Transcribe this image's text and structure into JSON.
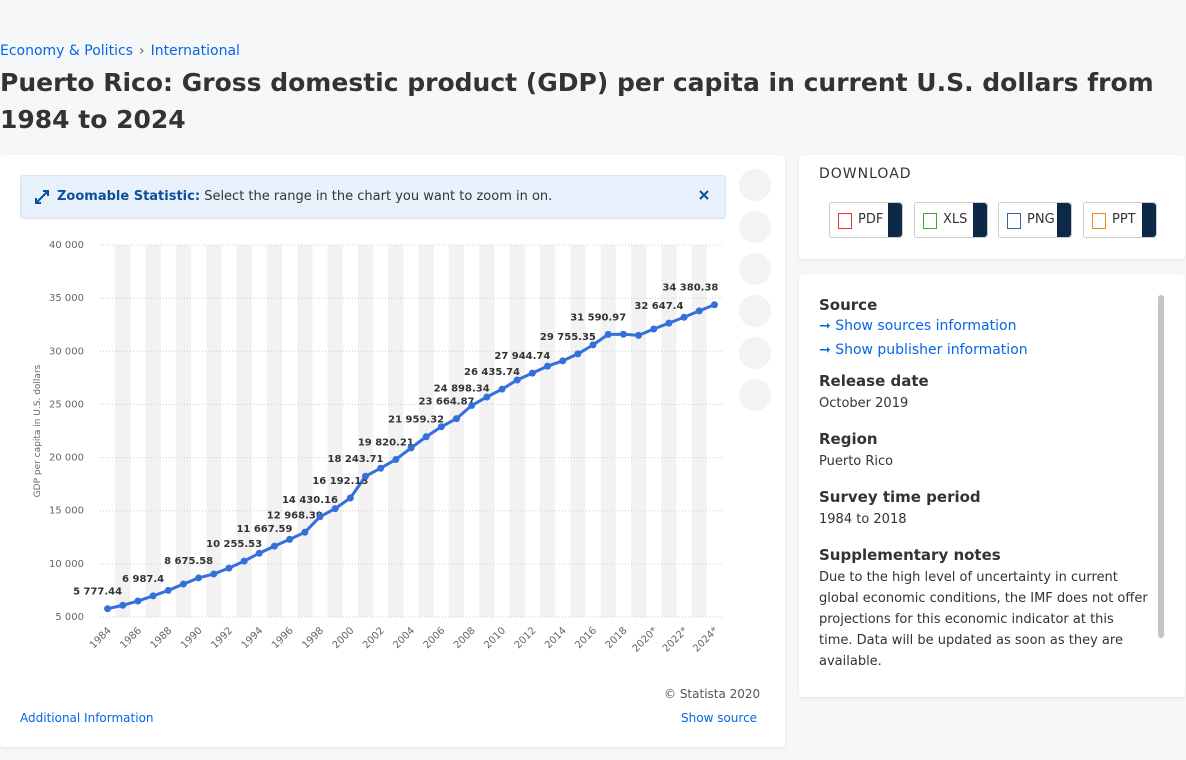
{
  "breadcrumb": [
    "Economy & Politics",
    "International"
  ],
  "title": "Puerto Rico: Gross domestic product (GDP) per capita in current U.S. dollars from 1984 to 2024",
  "zoom_notice": {
    "label": "Zoomable Statistic:",
    "text": "Select the range in the chart you want to zoom in on."
  },
  "chart_data": {
    "type": "line",
    "y_label": "GDP per capita in U.S. dollars",
    "categories": [
      "1984",
      null,
      "1986",
      null,
      "1988",
      null,
      "1990",
      null,
      "1992",
      null,
      "1994",
      null,
      "1996",
      null,
      "1998",
      null,
      "2000",
      null,
      "2002",
      null,
      "2004",
      null,
      "2006",
      null,
      "2008",
      null,
      "2010",
      null,
      "2012",
      null,
      "2014",
      null,
      "2016",
      null,
      "2018",
      null,
      "2020*",
      null,
      "2022*",
      null,
      "2024*"
    ],
    "values": [
      5777.44,
      6100,
      6500,
      6987.4,
      7500,
      8100,
      8675.58,
      9050,
      9600,
      10255.53,
      11000,
      11667.59,
      12300,
      12968.39,
      14430.16,
      15200,
      16192.13,
      18243.71,
      19000,
      19820.21,
      20900,
      21959.32,
      22900,
      23664.87,
      24898.34,
      25700,
      26435.74,
      27300,
      27944.74,
      28600,
      29100,
      29755.35,
      30600,
      31590.97,
      31600,
      31500,
      32100,
      32647.4,
      33200,
      33800,
      34380.38
    ],
    "value_labels": [
      "5 777.44",
      null,
      null,
      "6 987.4",
      null,
      null,
      "8 675.58",
      null,
      null,
      "10 255.53",
      null,
      "11 667.59",
      null,
      "12 968.39",
      "14 430.16",
      null,
      "16 192.13",
      "18 243.71",
      null,
      "19 820.21",
      null,
      "21 959.32",
      null,
      "23 664.87",
      "24 898.34",
      null,
      "26 435.74",
      null,
      "27 944.74",
      null,
      null,
      "29 755.35",
      null,
      "31 590.97",
      null,
      null,
      null,
      "32 647.4",
      null,
      null,
      "34 380.38"
    ],
    "color": "#3470d9",
    "ylim": [
      5000,
      40000
    ],
    "yticks": [
      {
        "value": 5000,
        "label": "5 000"
      },
      {
        "value": 10000,
        "label": "10 000"
      },
      {
        "value": 15000,
        "label": "15 000"
      },
      {
        "value": 20000,
        "label": "20 000"
      },
      {
        "value": 25000,
        "label": "25 000"
      },
      {
        "value": 30000,
        "label": "30 000"
      },
      {
        "value": 35000,
        "label": "35 000"
      },
      {
        "value": 40000,
        "label": "40 000"
      }
    ],
    "grid": true
  },
  "chart_footer": {
    "copyright": "© Statista 2020",
    "additional_info": "Additional Information",
    "show_source": "Show source"
  },
  "download": {
    "heading": "DOWNLOAD",
    "formats": [
      "PDF",
      "XLS",
      "PNG",
      "PPT"
    ]
  },
  "details": {
    "source": {
      "heading": "Source",
      "links": [
        "Show sources information",
        "Show publisher information"
      ]
    },
    "release_date": {
      "heading": "Release date",
      "text": "October 2019"
    },
    "region": {
      "heading": "Region",
      "text": "Puerto Rico"
    },
    "survey_period": {
      "heading": "Survey time period",
      "text": "1984 to 2018"
    },
    "notes": {
      "heading": "Supplementary notes",
      "text": "Due to the high level of uncertainty in current global economic conditions, the IMF does not offer projections for this economic indicator at this time. Data will be updated as soon as they are available."
    }
  }
}
